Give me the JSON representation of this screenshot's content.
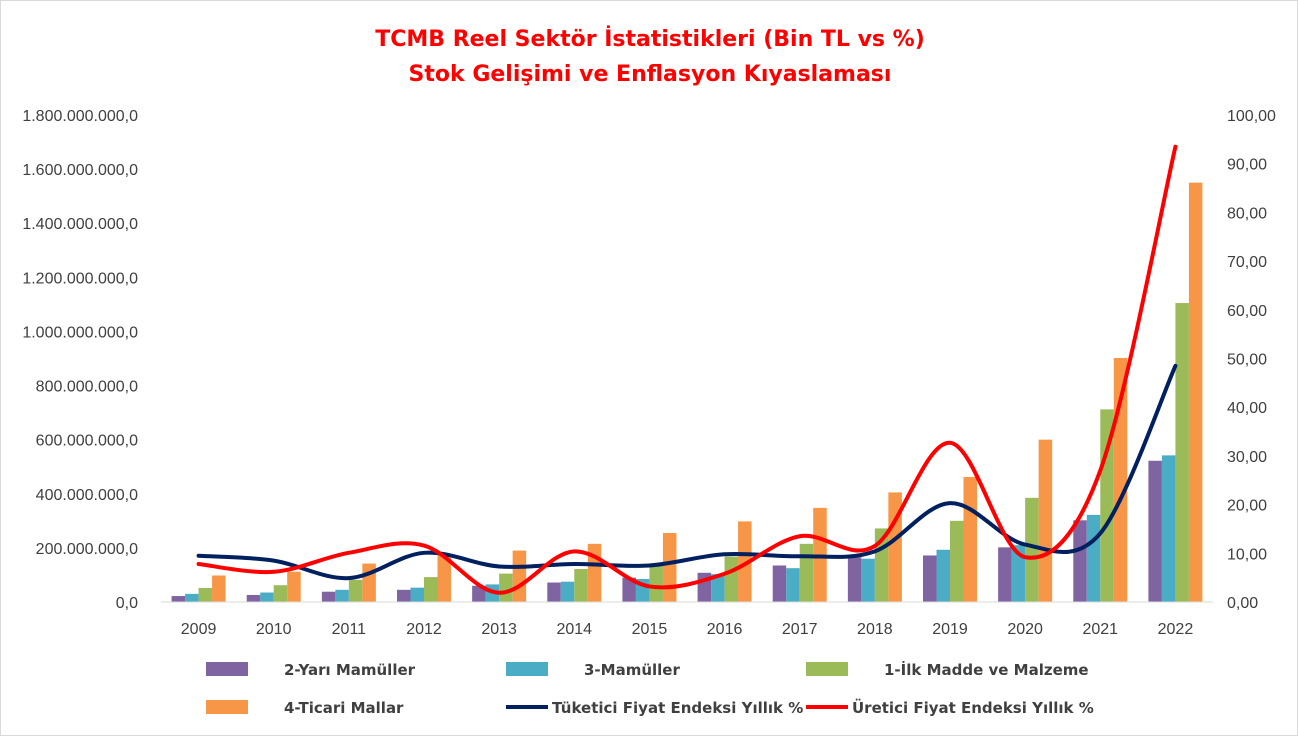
{
  "chart_data": {
    "type": "bar+line",
    "title": "TCMB  Reel Sektör İstatistikleri (Bin TL vs %)",
    "subtitle": "Stok Gelişimi ve Enflasyon Kıyaslaması",
    "categories": [
      "2009",
      "2010",
      "2011",
      "2012",
      "2013",
      "2014",
      "2015",
      "2016",
      "2017",
      "2018",
      "2019",
      "2020",
      "2021",
      "2022"
    ],
    "y_left": {
      "ylim": [
        0,
        1800000000
      ],
      "ticks": [
        0,
        200000000,
        400000000,
        600000000,
        800000000,
        1000000000,
        1200000000,
        1400000000,
        1600000000,
        1800000000
      ],
      "tick_labels": [
        "0,0",
        "200.000.000,0",
        "400.000.000,0",
        "600.000.000,0",
        "800.000.000,0",
        "1.000.000.000,0",
        "1.200.000.000,0",
        "1.400.000.000,0",
        "1.600.000.000,0",
        "1.800.000.000,0"
      ]
    },
    "y_right": {
      "ylim": [
        0,
        100
      ],
      "ticks": [
        0,
        10,
        20,
        30,
        40,
        50,
        60,
        70,
        80,
        90,
        100
      ],
      "tick_labels": [
        "0,00",
        "10,00",
        "20,00",
        "30,00",
        "40,00",
        "50,00",
        "60,00",
        "70,00",
        "80,00",
        "90,00",
        "100,00"
      ]
    },
    "bar_series": [
      {
        "name": "2-Yarı Mamüller",
        "color": "#8064a2",
        "values": [
          22000000,
          26000000,
          38000000,
          45000000,
          60000000,
          72000000,
          90000000,
          108000000,
          135000000,
          165000000,
          172000000,
          202000000,
          302000000,
          522000000
        ]
      },
      {
        "name": "3-Mamüller",
        "color": "#4bacc6",
        "values": [
          30000000,
          35000000,
          45000000,
          53000000,
          65000000,
          75000000,
          85000000,
          103000000,
          125000000,
          160000000,
          193000000,
          210000000,
          322000000,
          542000000
        ]
      },
      {
        "name": "1-İlk Madde ve Malzeme",
        "color": "#9bbb59",
        "values": [
          52000000,
          62000000,
          82000000,
          92000000,
          105000000,
          122000000,
          140000000,
          168000000,
          215000000,
          272000000,
          300000000,
          385000000,
          712000000,
          1105000000
        ]
      },
      {
        "name": "4-Ticari Mallar",
        "color": "#f79646",
        "values": [
          98000000,
          112000000,
          142000000,
          178000000,
          190000000,
          215000000,
          255000000,
          298000000,
          348000000,
          405000000,
          462000000,
          600000000,
          902000000,
          1550000000
        ]
      }
    ],
    "line_series": [
      {
        "name": "Tüketici Fiyat Endeksi Yıllık %",
        "color": "#002060",
        "values": [
          9.5,
          8.5,
          4.9,
          10.1,
          7.3,
          7.8,
          7.5,
          9.8,
          9.4,
          10.4,
          20.3,
          11.8,
          14.1,
          48.5
        ]
      },
      {
        "name": "Üretici Fiyat Endeksi Yıllık %",
        "color": "#ff0000",
        "values": [
          7.8,
          6.2,
          10.1,
          11.6,
          1.9,
          10.4,
          3.2,
          5.8,
          13.5,
          11.5,
          32.7,
          9.2,
          27.0,
          93.5
        ]
      }
    ],
    "legend_position": "bottom",
    "grid": false
  }
}
